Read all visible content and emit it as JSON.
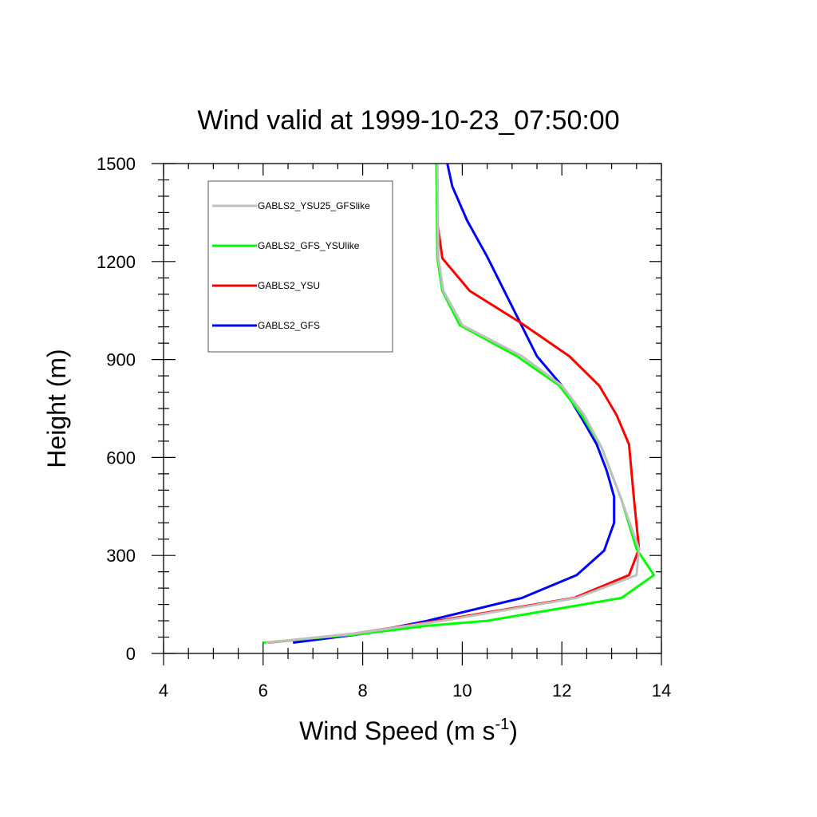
{
  "chart_data": {
    "type": "line",
    "title": "Wind valid at 1999-10-23_07:50:00",
    "xlabel": "Wind Speed (m s",
    "xlabel_sup": "-1",
    "xlabel_end": ")",
    "ylabel": "Height (m)",
    "xlim": [
      4,
      14
    ],
    "ylim": [
      0,
      1500
    ],
    "xticks": [
      "4",
      "6",
      "8",
      "10",
      "12",
      "14"
    ],
    "yticks": [
      "0",
      "300",
      "600",
      "900",
      "1200",
      "1500"
    ],
    "grid": false,
    "legend_position": "top-left",
    "series": [
      {
        "name": "GABLS2_YSU25_GFSlike",
        "color": "#c0c0c0",
        "x": [
          6.05,
          7.8,
          9.6,
          12.3,
          13.5,
          13.55,
          13.2,
          12.8,
          12.45,
          12.0,
          11.2,
          10.0,
          9.62,
          9.52,
          9.5
        ],
        "y": [
          33,
          60,
          100,
          170,
          240,
          320,
          470,
          630,
          730,
          820,
          910,
          1005,
          1110,
          1210,
          1500
        ]
      },
      {
        "name": "GABLS2_GFS_YSUlike",
        "color": "#00ff00",
        "x": [
          6.0,
          8.0,
          9.3,
          10.5,
          13.2,
          13.85,
          13.5,
          13.2,
          12.8,
          12.4,
          11.95,
          11.1,
          9.95,
          9.6,
          9.5,
          9.48
        ],
        "y": [
          33,
          60,
          85,
          100,
          170,
          240,
          320,
          470,
          630,
          730,
          820,
          910,
          1005,
          1110,
          1210,
          1500
        ]
      },
      {
        "name": "GABLS2_YSU",
        "color": "#ff0000",
        "x": [
          6.1,
          7.8,
          9.5,
          12.25,
          13.35,
          13.55,
          13.45,
          13.35,
          13.1,
          12.75,
          12.15,
          11.2,
          10.15,
          9.6,
          9.5,
          9.48
        ],
        "y": [
          33,
          60,
          100,
          170,
          240,
          320,
          470,
          640,
          730,
          820,
          910,
          1010,
          1110,
          1210,
          1320,
          1500
        ]
      },
      {
        "name": "GABLS2_GFS",
        "color": "#0000ff",
        "x": [
          6.6,
          8.0,
          9.3,
          11.2,
          12.3,
          12.85,
          13.05,
          13.05,
          12.9,
          12.7,
          12.4,
          12.0,
          11.5,
          10.5,
          10.1,
          9.8,
          9.7
        ],
        "y": [
          33,
          60,
          100,
          170,
          240,
          315,
          400,
          480,
          560,
          640,
          720,
          820,
          910,
          1215,
          1325,
          1430,
          1500
        ]
      }
    ]
  }
}
